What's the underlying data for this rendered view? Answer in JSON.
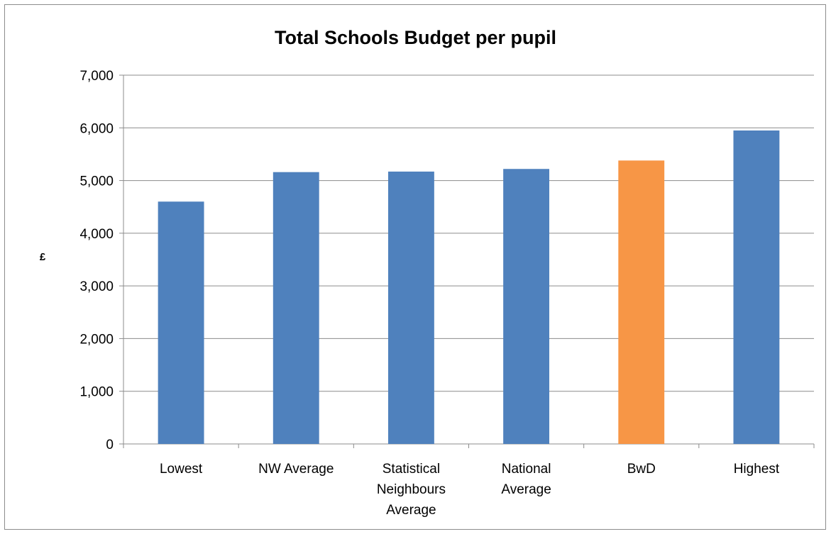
{
  "chart_data": {
    "type": "bar",
    "title": "Total Schools Budget per pupil",
    "ylabel": "£",
    "xlabel": "",
    "categories": [
      [
        "Lowest"
      ],
      [
        "NW  Average"
      ],
      [
        "Statistical",
        "Neighbours",
        "Average"
      ],
      [
        "National",
        "Average"
      ],
      [
        "BwD"
      ],
      [
        "Highest"
      ]
    ],
    "values": [
      4600,
      5160,
      5170,
      5220,
      5380,
      5950
    ],
    "bar_colors": [
      "#4f81bd",
      "#4f81bd",
      "#4f81bd",
      "#4f81bd",
      "#f79646",
      "#4f81bd"
    ],
    "ylim": [
      0,
      7000
    ],
    "yticks": [
      "0",
      "1,000",
      "2,000",
      "3,000",
      "4,000",
      "5,000",
      "6,000",
      "7,000"
    ],
    "grid": true,
    "legend": "none"
  }
}
